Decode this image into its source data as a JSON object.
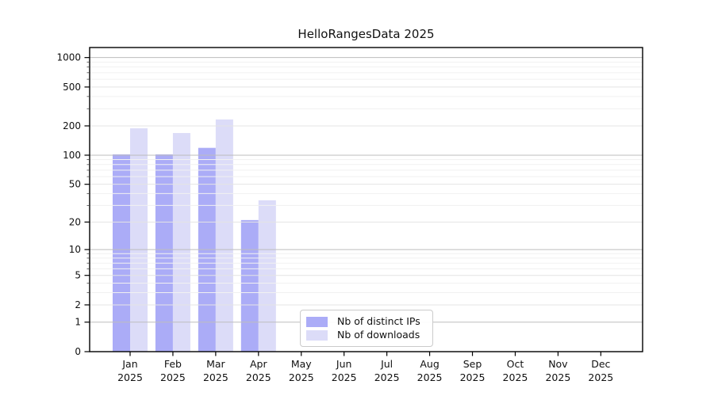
{
  "title": "HelloRangesData 2025",
  "chart_data": {
    "type": "bar",
    "title": "HelloRangesData 2025",
    "categories": [
      "Jan 2025",
      "Feb 2025",
      "Mar 2025",
      "Apr 2025",
      "May 2025",
      "Jun 2025",
      "Jul 2025",
      "Aug 2025",
      "Sep 2025",
      "Oct 2025",
      "Nov 2025",
      "Dec 2025"
    ],
    "series": [
      {
        "name": "Nb of distinct IPs",
        "values": [
          102,
          102,
          119,
          21,
          0,
          0,
          0,
          0,
          0,
          0,
          0,
          0
        ]
      },
      {
        "name": "Nb of downloads",
        "values": [
          189,
          169,
          233,
          34,
          0,
          0,
          0,
          0,
          0,
          0,
          0,
          0
        ]
      }
    ],
    "xlabel": "",
    "ylabel": "",
    "yscale": "log1p",
    "yticks": [
      0,
      1,
      2,
      5,
      10,
      20,
      50,
      100,
      200,
      500,
      1000
    ],
    "ylim": [
      0,
      1268
    ],
    "grid": "horizontal, major and minor",
    "legend_position": "inside bottom center-left"
  },
  "legend": {
    "items": [
      {
        "label": "Nb of distinct IPs",
        "color_key": "ips"
      },
      {
        "label": "Nb of downloads",
        "color_key": "downloads"
      }
    ]
  },
  "colors": {
    "ips": "#abacf7",
    "downloads": "#dcdcf8",
    "grid_major": "#bdbdbd",
    "grid_labeled": "#e4e4e4",
    "grid_minor": "#f1f1f1",
    "axis": "#000000",
    "text": "#111111"
  }
}
